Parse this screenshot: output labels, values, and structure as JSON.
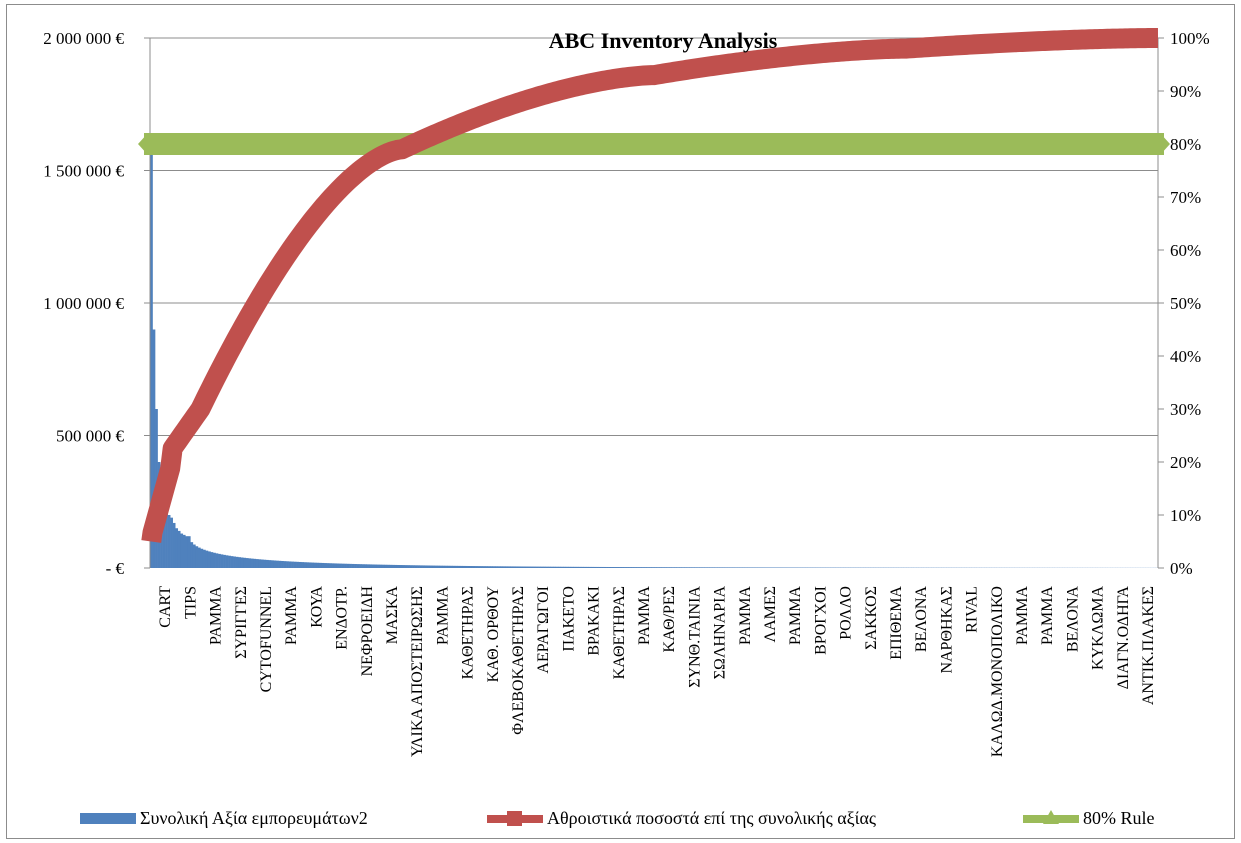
{
  "chart_data": {
    "type": "bar",
    "title": "ABC Inventory  Analysis",
    "y_left": {
      "ylim": [
        0,
        2000000
      ],
      "ticks": [
        0,
        500000,
        1000000,
        1500000,
        2000000
      ],
      "tick_labels": [
        "- €",
        "500 000 €",
        "1 000 000 €",
        "1 500 000 €",
        "2 000 000 €"
      ]
    },
    "y_right": {
      "ylim": [
        0,
        1
      ],
      "tick_labels": [
        "0%",
        "10%",
        "20%",
        "30%",
        "40%",
        "50%",
        "60%",
        "70%",
        "80%",
        "90%",
        "100%"
      ]
    },
    "categories": [
      "CART",
      "TIPS",
      "ΡΑΜΜΑ",
      "ΣΥΡΙΓΓΕΣ",
      "CYTOFUNNEL",
      "ΡΑΜΜΑ",
      "ΚΟΥΑ",
      "ΕΝΔΟΤΡ.",
      "ΝΕΦΡΟΕΙΔΗ",
      "ΜΑΣΚΑ",
      "ΥΛΙΚΑ ΑΠΟΣΤΕΙΡΩΣΗΣ",
      "ΡΑΜΜΑ",
      "ΚΑΘΕΤΗΡΑΣ",
      "ΚΑΘ. ΟΡΘΟΥ",
      "ΦΛΕΒΟΚΑΘΕΤΗΡΑΣ",
      "ΑΕΡΑΓΩΓΟΙ",
      "ΠΑΚΕΤΟ",
      "ΒΡΑΚΑΚΙ",
      "ΚΑΘΕΤΗΡΑΣ",
      "ΡΑΜΜΑ",
      "ΚΑΘ/ΡΕΣ",
      "ΣΥΝΘ.ΤΑΙΝΙΑ",
      "ΣΩΛΗΝΑΡΙΑ",
      "ΡΑΜΜΑ",
      "ΛΑΜΕΣ",
      "ΡΑΜΜΑ",
      "ΒΡΟΓΧΟΙ",
      "ΡΟΛΛΟ",
      "ΣΑΚΚΟΣ",
      "ΕΠΙΘΕΜΑ",
      "ΒΕΛΟΝΑ",
      "ΝΑΡΘΗΚΑΣ",
      "RIVAL",
      "ΚΑΛΩΔ.ΜΟΝΟΠΟΛΙΚΟ",
      "ΡΑΜΜΑ",
      "ΡΑΜΜΑ",
      "ΒΕΛΟΝΑ",
      "ΚΥΚΛΩΜΑ",
      "ΔΙΑΓΝ.ΟΔΗΓΑ",
      "ΑΝΤΙΚ.ΠΛΑΚΕΣ"
    ],
    "item_count": 400,
    "series": [
      {
        "name": "Συνολική Αξία εμπορευμάτων2",
        "kind": "bar",
        "axis": "left",
        "color": "#4f81bd",
        "head_values": [
          1580000,
          900000,
          600000,
          400000,
          300000,
          250000,
          210000,
          200000,
          190000,
          170000,
          150000,
          140000,
          130000,
          125000,
          120000
        ],
        "decay_to": 500
      },
      {
        "name": "Αθροιστικά ποσοστά επί της συνολικής αξίας",
        "kind": "line",
        "axis": "right",
        "color": "#c0504d",
        "start": 0.05,
        "end": 1.0,
        "milestones": [
          [
            0.05,
            0.3
          ],
          [
            0.25,
            0.79
          ],
          [
            0.5,
            0.93
          ],
          [
            0.75,
            0.98
          ],
          [
            1.0,
            1.0
          ]
        ]
      },
      {
        "name": "80% Rule",
        "kind": "line",
        "axis": "right",
        "color": "#9bbb59",
        "value": 0.8
      }
    ],
    "grid": true,
    "legend_position": "bottom"
  }
}
